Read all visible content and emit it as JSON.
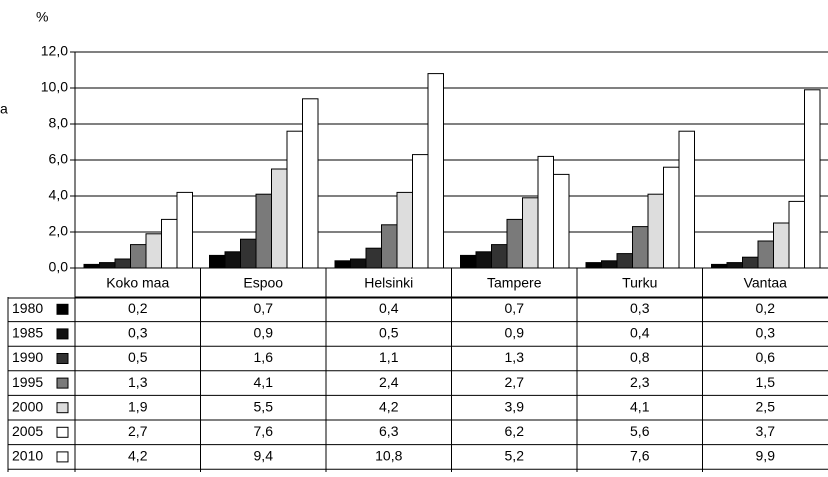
{
  "chart_data": {
    "type": "bar",
    "y_label": "%",
    "annotation": "a",
    "categories": [
      "Koko maa",
      "Espoo",
      "Helsinki",
      "Tampere",
      "Turku",
      "Vantaa"
    ],
    "series": [
      {
        "name": "1980",
        "color": "#000000",
        "values": [
          0.2,
          0.7,
          0.4,
          0.7,
          0.3,
          0.2
        ],
        "value_labels": [
          "0,2",
          "0,7",
          "0,4",
          "0,7",
          "0,3",
          "0,2"
        ]
      },
      {
        "name": "1985",
        "color": "#111111",
        "values": [
          0.3,
          0.9,
          0.5,
          0.9,
          0.4,
          0.3
        ],
        "value_labels": [
          "0,3",
          "0,9",
          "0,5",
          "0,9",
          "0,4",
          "0,3"
        ]
      },
      {
        "name": "1990",
        "color": "#333333",
        "values": [
          0.5,
          1.6,
          1.1,
          1.3,
          0.8,
          0.6
        ],
        "value_labels": [
          "0,5",
          "1,6",
          "1,1",
          "1,3",
          "0,8",
          "0,6"
        ]
      },
      {
        "name": "1995",
        "color": "#7a7a7a",
        "values": [
          1.3,
          4.1,
          2.4,
          2.7,
          2.3,
          1.5
        ],
        "value_labels": [
          "1,3",
          "4,1",
          "2,4",
          "2,7",
          "2,3",
          "1,5"
        ]
      },
      {
        "name": "2000",
        "color": "#dddddd",
        "values": [
          1.9,
          5.5,
          4.2,
          3.9,
          4.1,
          2.5
        ],
        "value_labels": [
          "1,9",
          "5,5",
          "4,2",
          "3,9",
          "4,1",
          "2,5"
        ]
      },
      {
        "name": "2005",
        "color": "#ffffff",
        "values": [
          2.7,
          7.6,
          6.3,
          6.2,
          5.6,
          3.7
        ],
        "value_labels": [
          "2,7",
          "7,6",
          "6,3",
          "6,2",
          "5,6",
          "3,7"
        ]
      },
      {
        "name": "2010",
        "color": "#ffffff",
        "values": [
          4.2,
          9.4,
          10.8,
          5.2,
          7.6,
          9.9
        ],
        "value_labels": [
          "4,2",
          "9,4",
          "10,8",
          "5,2",
          "7,6",
          "9,9"
        ]
      }
    ],
    "ylim": [
      0,
      12
    ],
    "yticks": [
      {
        "value": 0,
        "label": "0,0"
      },
      {
        "value": 2,
        "label": "2,0"
      },
      {
        "value": 4,
        "label": "4,0"
      },
      {
        "value": 6,
        "label": "6,0"
      },
      {
        "value": 8,
        "label": "8,0"
      },
      {
        "value": 10,
        "label": "10,0"
      },
      {
        "value": 12,
        "label": "12,0"
      }
    ],
    "grid": true
  }
}
